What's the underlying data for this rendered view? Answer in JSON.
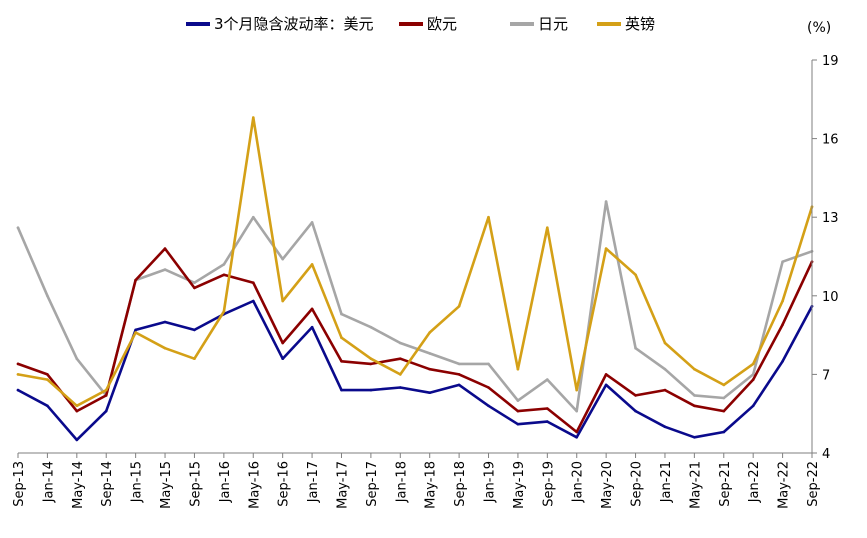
{
  "chart_data": {
    "type": "line",
    "title": "",
    "xlabel": "",
    "ylabel": "",
    "unit_label": "(%)",
    "ylim": [
      4,
      19
    ],
    "y_ticks": [
      "4",
      "7",
      "10",
      "13",
      "16",
      "19"
    ],
    "y_axis_side": "right",
    "grid": false,
    "legend_position": "top",
    "x_ticks": [
      "Sep-13",
      "Jan-14",
      "May-14",
      "Sep-14",
      "Jan-15",
      "May-15",
      "Sep-15",
      "Jan-16",
      "May-16",
      "Sep-16",
      "Jan-17",
      "May-17",
      "Sep-17",
      "Jan-18",
      "May-18",
      "Sep-18",
      "Jan-19",
      "May-19",
      "Sep-19",
      "Jan-20",
      "May-20",
      "Sep-20",
      "Jan-21",
      "May-21",
      "Sep-21",
      "Jan-22",
      "May-22",
      "Sep-22"
    ],
    "series": [
      {
        "name": "3个月隐含波动率：美元",
        "color": "#0a0a8c",
        "values": [
          6.4,
          5.8,
          4.5,
          5.6,
          8.7,
          9.0,
          8.7,
          9.3,
          9.8,
          7.6,
          8.8,
          6.4,
          6.4,
          6.5,
          6.3,
          6.6,
          5.8,
          5.1,
          5.2,
          4.6,
          6.6,
          5.6,
          5.0,
          4.6,
          4.8,
          5.8,
          7.5,
          9.6
        ]
      },
      {
        "name": "欧元",
        "color": "#8b0000",
        "values": [
          7.4,
          7.0,
          5.6,
          6.2,
          10.6,
          11.8,
          10.3,
          10.8,
          10.5,
          8.2,
          9.5,
          7.5,
          7.4,
          7.6,
          7.2,
          7.0,
          6.5,
          5.6,
          5.7,
          4.8,
          7.0,
          6.2,
          6.4,
          5.8,
          5.6,
          6.8,
          8.9,
          11.3
        ]
      },
      {
        "name": "日元",
        "color": "#a6a6a6",
        "values": [
          12.6,
          10.0,
          7.6,
          6.2,
          10.6,
          11.0,
          10.5,
          11.2,
          13.0,
          11.4,
          12.8,
          9.3,
          8.8,
          8.2,
          7.8,
          7.4,
          7.4,
          6.0,
          6.8,
          5.6,
          13.6,
          8.0,
          7.2,
          6.2,
          6.1,
          7.0,
          11.3,
          11.7
        ]
      },
      {
        "name": "英镑",
        "color": "#d4a017",
        "values": [
          7.0,
          6.8,
          5.8,
          6.4,
          8.6,
          8.0,
          7.6,
          9.4,
          16.8,
          9.8,
          11.2,
          8.4,
          7.6,
          7.0,
          8.6,
          9.6,
          13.0,
          7.2,
          12.6,
          6.4,
          11.8,
          10.8,
          8.2,
          7.2,
          6.6,
          7.4,
          9.8,
          13.4
        ]
      }
    ]
  }
}
